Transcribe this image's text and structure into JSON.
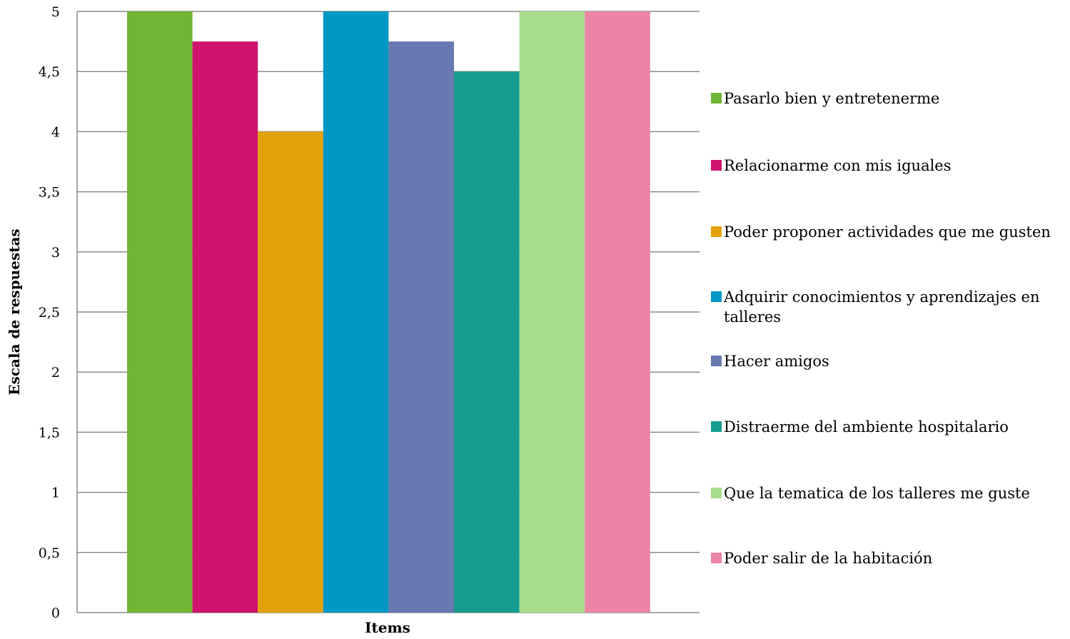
{
  "chart_data": {
    "type": "bar",
    "title": "",
    "xlabel": "Items",
    "ylabel": "Escala de respuestas",
    "ylim": [
      0,
      5
    ],
    "yticks": [
      "0",
      "0,5",
      "1",
      "1,5",
      "2",
      "2,5",
      "3",
      "3,5",
      "4",
      "4,5",
      "5"
    ],
    "grid": true,
    "legend_position": "right",
    "series": [
      {
        "name": "Pasarlo bien y entretenerme",
        "values": [
          5
        ],
        "color": "#70b533"
      },
      {
        "name": "Relacionarme con mis iguales",
        "values": [
          4.75
        ],
        "color": "#d0136c"
      },
      {
        "name": "Poder proponer actividades que me gusten",
        "values": [
          4
        ],
        "color": "#e2a20b"
      },
      {
        "name": "Adquirir conocimientos y aprendizajes en talleres",
        "values": [
          5
        ],
        "color": "#0097c4"
      },
      {
        "name": "Hacer amigos",
        "values": [
          4.75
        ],
        "color": "#6679b0"
      },
      {
        "name": "Distraerme del ambiente hospitalario",
        "values": [
          4.5
        ],
        "color": "#169c8e"
      },
      {
        "name": "Que la tematica de los talleres me guste",
        "values": [
          5
        ],
        "color": "#a8dc8d"
      },
      {
        "name": "Poder salir de la habitación",
        "values": [
          5
        ],
        "color": "#ec84a5"
      }
    ]
  }
}
